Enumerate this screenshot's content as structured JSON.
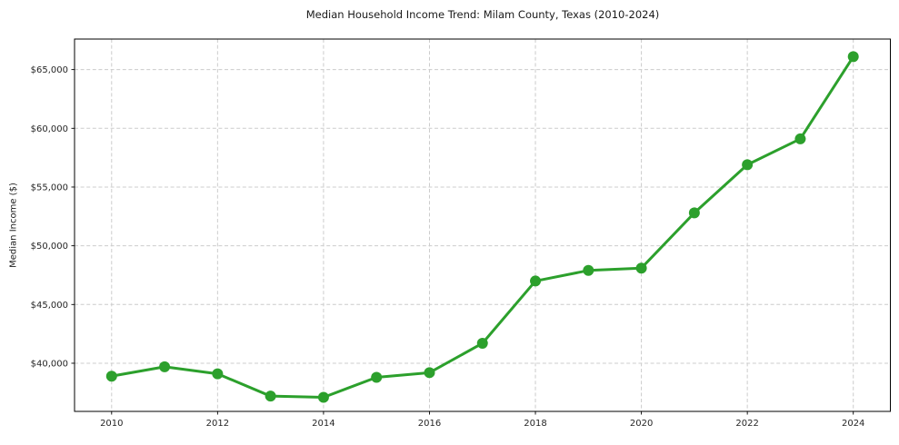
{
  "chart_data": {
    "type": "line",
    "title": "Median Household Income Trend: Milam County, Texas (2010-2024)",
    "xlabel": "",
    "ylabel": "Median Income ($)",
    "x": [
      2010,
      2011,
      2012,
      2013,
      2014,
      2015,
      2016,
      2017,
      2018,
      2019,
      2020,
      2021,
      2022,
      2023,
      2024
    ],
    "series": [
      {
        "name": "Median Household Income",
        "values": [
          38900,
          39700,
          39100,
          37200,
          37100,
          38800,
          39200,
          41700,
          47000,
          47900,
          48100,
          52800,
          56900,
          59100,
          66100
        ]
      }
    ],
    "xticks": [
      2010,
      2012,
      2014,
      2016,
      2018,
      2020,
      2022,
      2024
    ],
    "xtick_labels": [
      "2010",
      "2012",
      "2014",
      "2016",
      "2018",
      "2020",
      "2022",
      "2024"
    ],
    "yticks": [
      40000,
      45000,
      50000,
      55000,
      60000,
      65000
    ],
    "ytick_labels": [
      "$40,000",
      "$45,000",
      "$50,000",
      "$55,000",
      "$60,000",
      "$65,000"
    ],
    "xlim": [
      2009.3,
      2024.7
    ],
    "ylim": [
      35900,
      67600
    ],
    "grid": true,
    "grid_style": "dashed",
    "legend": "none",
    "colors": {
      "line": "#2ca02c",
      "marker": "#2ca02c",
      "grid": "#cccccc",
      "spine": "#000000",
      "text": "#262626",
      "background": "#ffffff"
    },
    "marker": "circle",
    "marker_radius": 6,
    "line_width": 3
  }
}
